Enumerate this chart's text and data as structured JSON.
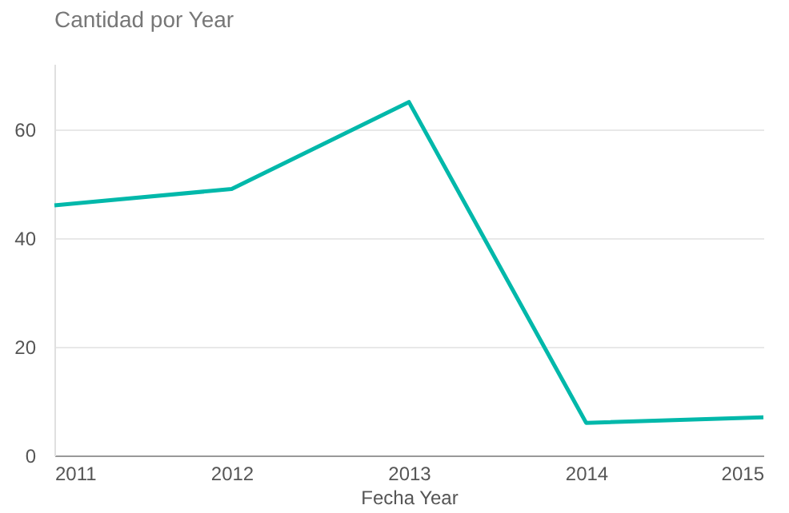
{
  "chart_data": {
    "type": "line",
    "title": "Cantidad por Year",
    "xlabel": "Fecha Year",
    "x": [
      2011,
      2012,
      2013,
      2014,
      2015
    ],
    "series": [
      {
        "color": "#01b8aa",
        "values": [
          46,
          49,
          65,
          6,
          7
        ]
      }
    ],
    "xlim": [
      2011,
      2015
    ],
    "xticks": [
      2011,
      2012,
      2013,
      2014,
      2015
    ],
    "ylim": [
      0,
      72
    ],
    "yticks": [
      0,
      20,
      40,
      60
    ],
    "grid": "y",
    "marker": "none",
    "line_style": "solid"
  }
}
